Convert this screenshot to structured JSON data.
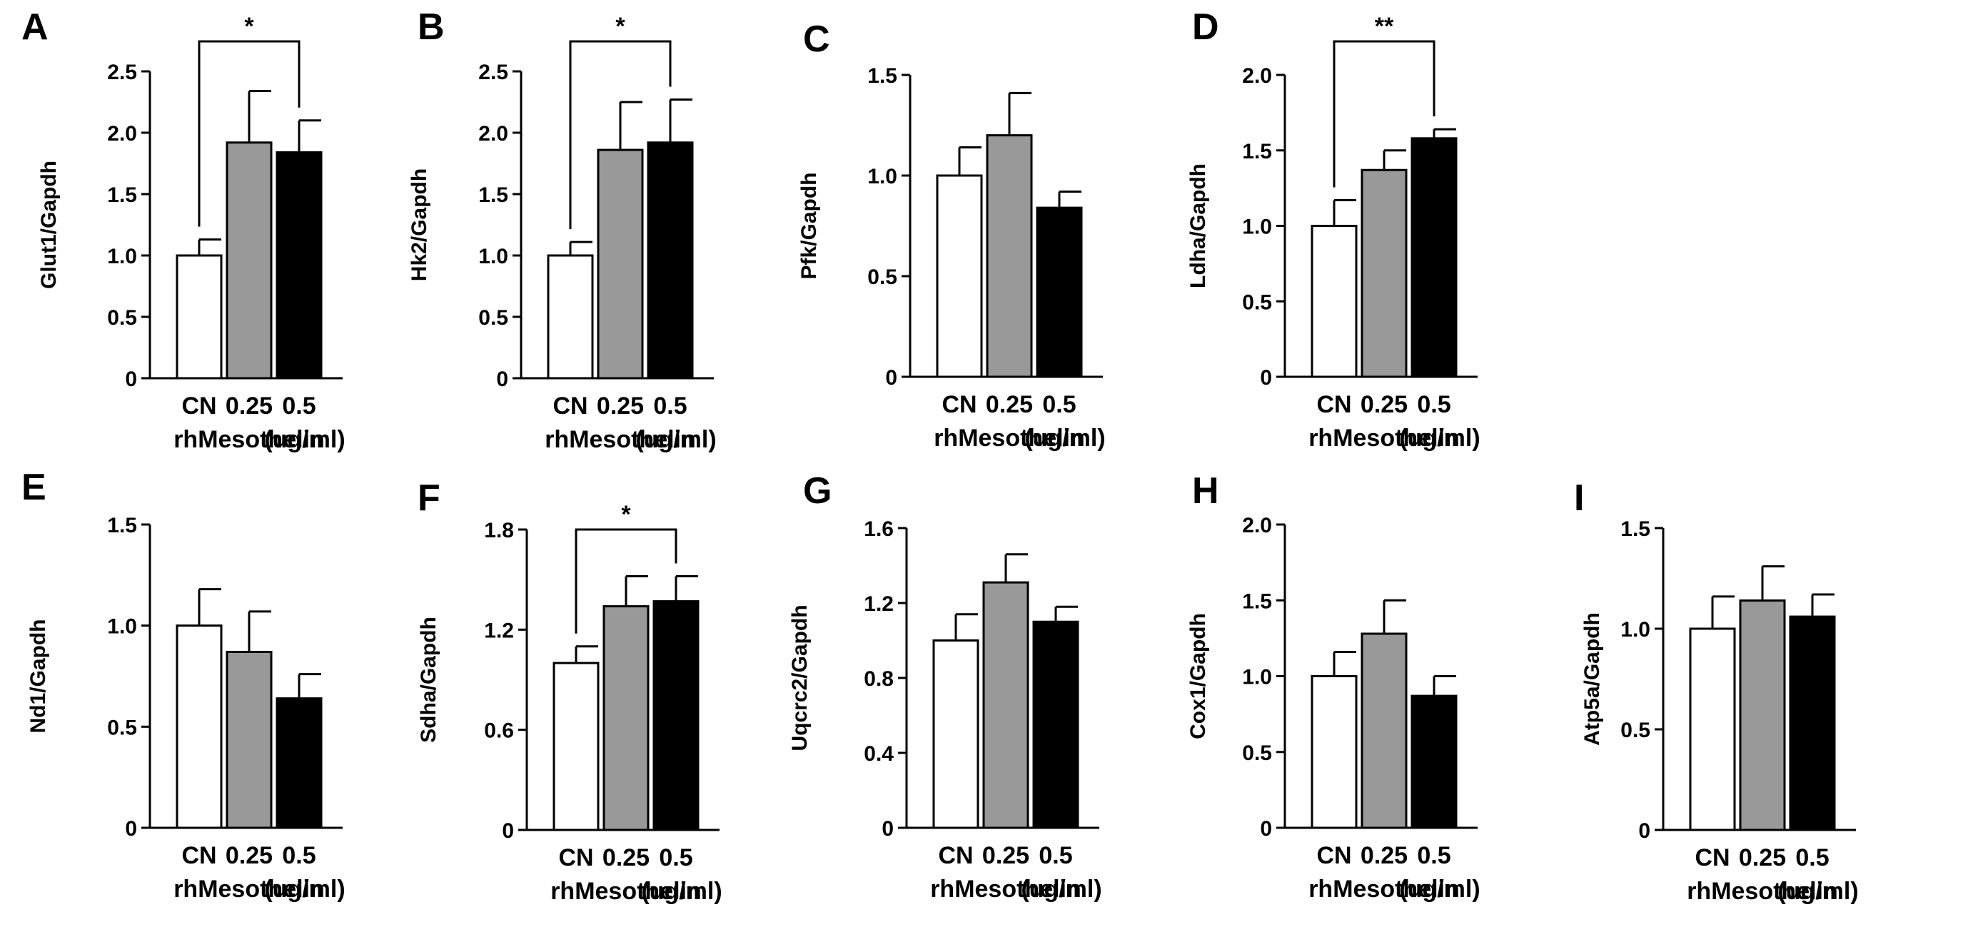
{
  "x_title": "rhMesothelin",
  "x_unit": "(ug/ml)",
  "chart_data": [
    {
      "type": "bar",
      "panel": "A",
      "ylabel": "Glut1/Gapdh",
      "categories": [
        "CN",
        "0.25",
        "0.5"
      ],
      "values": [
        1.0,
        1.92,
        1.84
      ],
      "errors": [
        0.13,
        0.42,
        0.26
      ],
      "ylim": [
        0,
        2.5
      ],
      "yticks": [
        "0",
        "0.5",
        "1.0",
        "1.5",
        "2.0",
        "2.5"
      ],
      "bar_colors": [
        "#ffffff",
        "#999999",
        "#000000"
      ],
      "significance": {
        "from": 0,
        "to": 2,
        "label": "*"
      }
    },
    {
      "type": "bar",
      "panel": "B",
      "ylabel": "Hk2/Gapdh",
      "categories": [
        "CN",
        "0.25",
        "0.5"
      ],
      "values": [
        1.0,
        1.86,
        1.92
      ],
      "errors": [
        0.11,
        0.39,
        0.35
      ],
      "ylim": [
        0,
        2.5
      ],
      "yticks": [
        "0",
        "0.5",
        "1.0",
        "1.5",
        "2.0",
        "2.5"
      ],
      "bar_colors": [
        "#ffffff",
        "#999999",
        "#000000"
      ],
      "significance": {
        "from": 0,
        "to": 2,
        "label": "*"
      }
    },
    {
      "type": "bar",
      "panel": "C",
      "ylabel": "Pfk/Gapdh",
      "categories": [
        "CN",
        "0.25",
        "0.5"
      ],
      "values": [
        1.0,
        1.2,
        0.84
      ],
      "errors": [
        0.14,
        0.21,
        0.08
      ],
      "ylim": [
        0,
        1.5
      ],
      "yticks": [
        "0",
        "0.5",
        "1.0",
        "1.5"
      ],
      "bar_colors": [
        "#ffffff",
        "#999999",
        "#000000"
      ]
    },
    {
      "type": "bar",
      "panel": "D",
      "ylabel": "Ldha/Gapdh",
      "categories": [
        "CN",
        "0.25",
        "0.5"
      ],
      "values": [
        1.0,
        1.37,
        1.58
      ],
      "errors": [
        0.17,
        0.13,
        0.06
      ],
      "ylim": [
        0,
        2.0
      ],
      "yticks": [
        "0",
        "0.5",
        "1.0",
        "1.5",
        "2.0"
      ],
      "bar_colors": [
        "#ffffff",
        "#999999",
        "#000000"
      ],
      "significance": {
        "from": 0,
        "to": 2,
        "label": "**"
      }
    },
    {
      "type": "bar",
      "panel": "E",
      "ylabel": "Nd1/Gapdh",
      "categories": [
        "CN",
        "0.25",
        "0.5"
      ],
      "values": [
        1.0,
        0.87,
        0.64
      ],
      "errors": [
        0.18,
        0.2,
        0.12
      ],
      "ylim": [
        0,
        1.5
      ],
      "yticks": [
        "0",
        "0.5",
        "1.0",
        "1.5"
      ],
      "bar_colors": [
        "#ffffff",
        "#999999",
        "#000000"
      ]
    },
    {
      "type": "bar",
      "panel": "F",
      "ylabel": "Sdha/Gapdh",
      "categories": [
        "CN",
        "0.25",
        "0.5"
      ],
      "values": [
        1.0,
        1.34,
        1.37
      ],
      "errors": [
        0.1,
        0.18,
        0.15
      ],
      "ylim": [
        0,
        1.8
      ],
      "yticks": [
        "0",
        "0.6",
        "1.2",
        "1.8"
      ],
      "bar_colors": [
        "#ffffff",
        "#999999",
        "#000000"
      ],
      "significance": {
        "from": 0,
        "to": 2,
        "label": "*"
      }
    },
    {
      "type": "bar",
      "panel": "G",
      "ylabel": "Uqcrc2/Gapdh",
      "categories": [
        "CN",
        "0.25",
        "0.5"
      ],
      "values": [
        1.0,
        1.31,
        1.1
      ],
      "errors": [
        0.14,
        0.15,
        0.08
      ],
      "ylim": [
        0,
        1.6
      ],
      "yticks": [
        "0",
        "0.4",
        "0.8",
        "1.2",
        "1.6"
      ],
      "bar_colors": [
        "#ffffff",
        "#999999",
        "#000000"
      ]
    },
    {
      "type": "bar",
      "panel": "H",
      "ylabel": "Cox1/Gapdh",
      "categories": [
        "CN",
        "0.25",
        "0.5"
      ],
      "values": [
        1.0,
        1.28,
        0.87
      ],
      "errors": [
        0.16,
        0.22,
        0.13
      ],
      "ylim": [
        0,
        2.0
      ],
      "yticks": [
        "0",
        "0.5",
        "1.0",
        "1.5",
        "2.0"
      ],
      "bar_colors": [
        "#ffffff",
        "#999999",
        "#000000"
      ]
    },
    {
      "type": "bar",
      "panel": "I",
      "ylabel": "Atp5a/Gapdh",
      "categories": [
        "CN",
        "0.25",
        "0.5"
      ],
      "values": [
        1.0,
        1.14,
        1.06
      ],
      "errors": [
        0.16,
        0.17,
        0.11
      ],
      "ylim": [
        0,
        1.5
      ],
      "yticks": [
        "0",
        "0.5",
        "1.0",
        "1.5"
      ],
      "bar_colors": [
        "#ffffff",
        "#999999",
        "#000000"
      ]
    }
  ]
}
